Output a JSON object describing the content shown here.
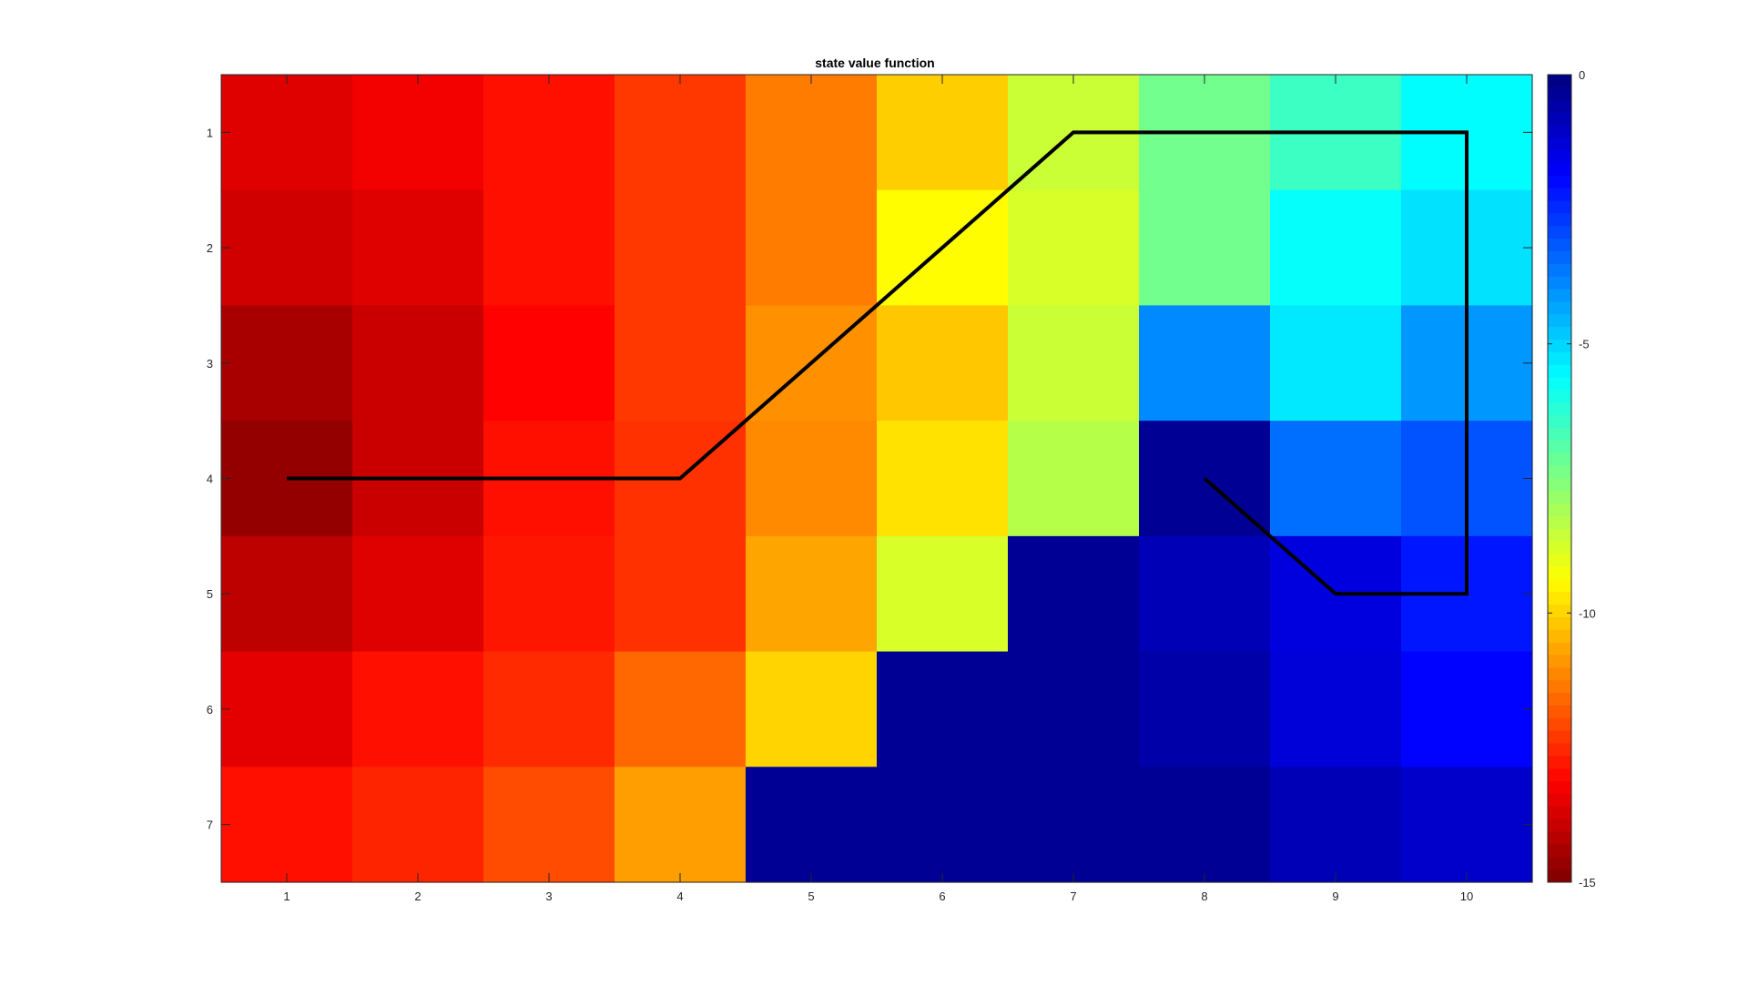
{
  "chart_data": {
    "type": "heatmap",
    "title": "state value function",
    "xlabel": "",
    "ylabel": "",
    "x_ticks": [
      "1",
      "2",
      "3",
      "4",
      "5",
      "6",
      "7",
      "8",
      "9",
      "10"
    ],
    "y_ticks": [
      "1",
      "2",
      "3",
      "4",
      "5",
      "6",
      "7"
    ],
    "x_range": [
      0.5,
      10.5
    ],
    "y_range": [
      0.5,
      7.5
    ],
    "y_direction": "reversed",
    "values": [
      [
        -13.6,
        -13.3,
        -12.9,
        -12.3,
        -11.3,
        -10.1,
        -8.6,
        -7.3,
        -6.5,
        -5.6
      ],
      [
        -13.8,
        -13.6,
        -12.9,
        -12.3,
        -11.3,
        -9.4,
        -8.8,
        -7.3,
        -5.7,
        -5.2
      ],
      [
        -14.4,
        -13.9,
        -13.1,
        -12.3,
        -11.0,
        -10.2,
        -8.6,
        -3.9,
        -5.3,
        -4.1
      ],
      [
        -14.7,
        -13.9,
        -12.9,
        -12.4,
        -11.1,
        -9.8,
        -8.3,
        -0.3,
        -3.5,
        -3.1
      ],
      [
        -14.1,
        -13.6,
        -12.8,
        -12.4,
        -10.7,
        -8.8,
        -0.3,
        -0.8,
        -1.4,
        -2.2
      ],
      [
        -13.5,
        -12.9,
        -12.5,
        -11.6,
        -10.0,
        -0.3,
        -0.3,
        -0.6,
        -1.3,
        -1.9
      ],
      [
        -12.9,
        -12.6,
        -12.0,
        -10.8,
        -0.3,
        -0.3,
        -0.3,
        -0.3,
        -0.8,
        -1.1
      ]
    ],
    "colormap": "jet-reversed",
    "colorbar": {
      "range": [
        -15,
        0
      ],
      "ticks": [
        "0",
        "-5",
        "-10",
        "-15"
      ],
      "tick_values": [
        0,
        -5,
        -10,
        -15
      ],
      "position": "right"
    },
    "overlay_path": {
      "color": "#000000",
      "points": [
        [
          1,
          4
        ],
        [
          4,
          4
        ],
        [
          7,
          1
        ],
        [
          10,
          1
        ],
        [
          10,
          5
        ],
        [
          9,
          5
        ],
        [
          8,
          4
        ]
      ]
    },
    "grid": false
  }
}
